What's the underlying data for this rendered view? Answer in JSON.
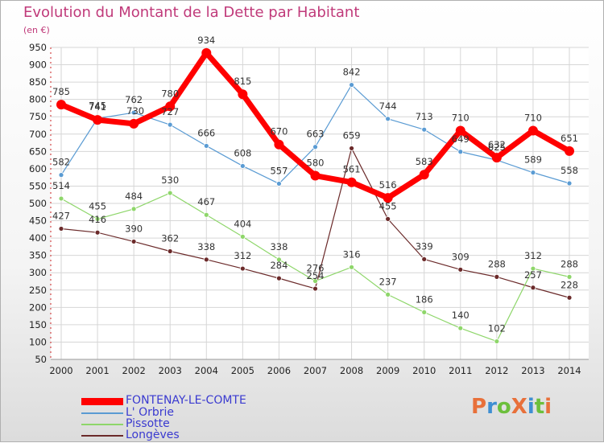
{
  "title": "Evolution du Montant de la Dette par Habitant",
  "unit": "(en €)",
  "logo": {
    "text": "ProXiti",
    "colors": [
      "#e8703a",
      "#3f8fd2",
      "#6cbf3c",
      "#e8703a",
      "#3f8fd2",
      "#6cbf3c",
      "#e8703a"
    ]
  },
  "chart_data": {
    "type": "line",
    "title": "Evolution du Montant de la Dette par Habitant",
    "ylabel": "(en €)",
    "xlabel": "",
    "ylim": [
      50,
      950
    ],
    "yticks": [
      50,
      100,
      150,
      200,
      250,
      300,
      350,
      400,
      450,
      500,
      550,
      600,
      650,
      700,
      750,
      800,
      850,
      900,
      950
    ],
    "categories": [
      "2000",
      "2001",
      "2002",
      "2003",
      "2004",
      "2005",
      "2006",
      "2007",
      "2008",
      "2009",
      "2010",
      "2011",
      "2012",
      "2013",
      "2014"
    ],
    "grid": true,
    "series": [
      {
        "name": "FONTENAY-LE-COMTE",
        "color": "#ff0000",
        "width": 7,
        "marker": 6,
        "values": [
          785,
          741,
          730,
          780,
          934,
          815,
          670,
          580,
          561,
          516,
          583,
          710,
          632,
          710,
          651
        ]
      },
      {
        "name": "L' Orbrie",
        "color": "#5a9bd3",
        "width": 1.2,
        "marker": 3,
        "values": [
          582,
          745,
          762,
          727,
          666,
          608,
          557,
          663,
          842,
          744,
          713,
          649,
          625,
          589,
          558
        ]
      },
      {
        "name": "Pissotte",
        "color": "#8ed66a",
        "width": 1.2,
        "marker": 3,
        "values": [
          514,
          455,
          484,
          530,
          467,
          404,
          338,
          276,
          316,
          237,
          186,
          140,
          102,
          312,
          288
        ]
      },
      {
        "name": "Longèves",
        "color": "#6b2a2a",
        "width": 1.2,
        "marker": 3,
        "values": [
          427,
          416,
          390,
          362,
          338,
          312,
          284,
          254,
          659,
          455,
          339,
          309,
          288,
          257,
          228
        ]
      }
    ]
  }
}
